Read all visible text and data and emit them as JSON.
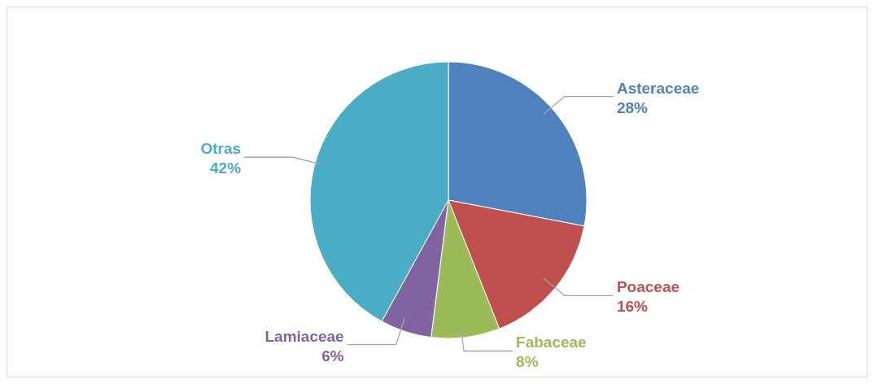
{
  "chart_data": {
    "type": "pie",
    "categories": [
      "Asteraceae",
      "Poaceae",
      "Fabaceae",
      "Lamiaceae",
      "Otras"
    ],
    "values": [
      28,
      16,
      8,
      6,
      42
    ],
    "value_labels": [
      "28%",
      "16%",
      "8%",
      "6%",
      "42%"
    ],
    "colors": [
      "#4f81bd",
      "#c0504d",
      "#9bbb59",
      "#8064a2",
      "#4bacc6"
    ],
    "legend": false
  }
}
